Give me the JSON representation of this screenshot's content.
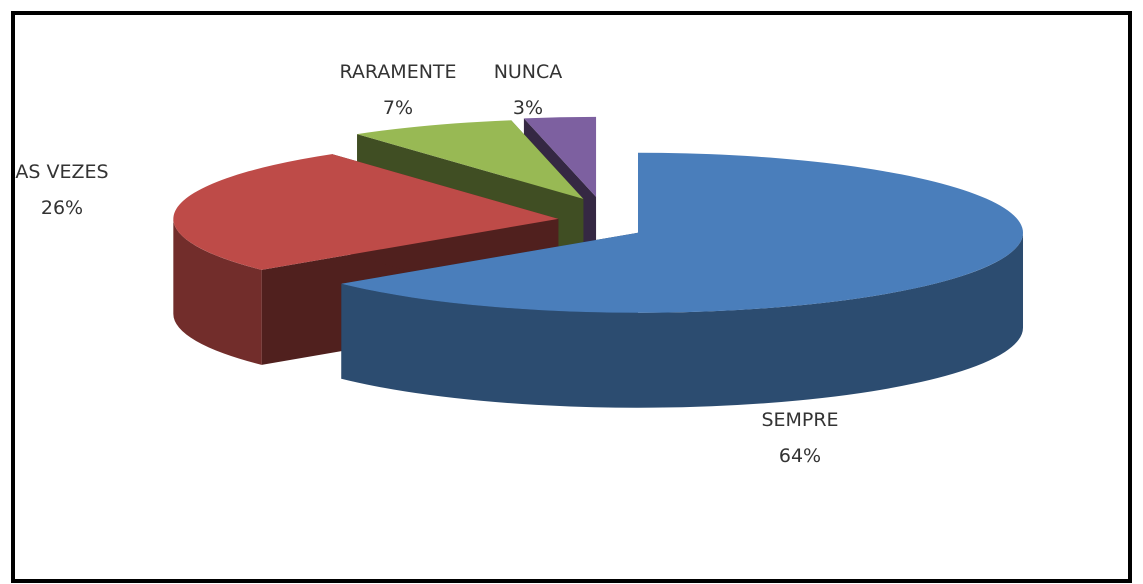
{
  "chart_data": {
    "type": "pie3d",
    "categories": [
      "SEMPRE",
      "AS VEZES",
      "RARAMENTE",
      "NUNCA"
    ],
    "values": [
      64,
      26,
      7,
      3
    ],
    "value_labels": [
      "64%",
      "26%",
      "7%",
      "3%"
    ],
    "colors": [
      "#4a7ebb",
      "#be4b48",
      "#98b954",
      "#7d60a0"
    ],
    "exploded": true
  }
}
